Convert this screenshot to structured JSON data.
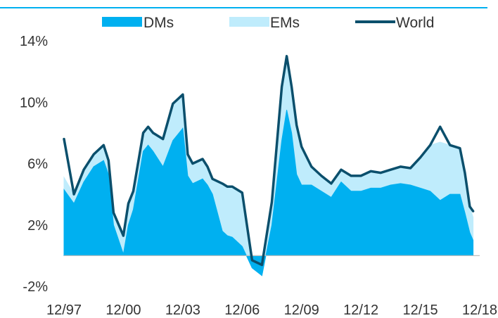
{
  "chart_data": {
    "type": "area",
    "title": "",
    "xlabel": "",
    "ylabel": "",
    "ylim": [
      -2,
      14
    ],
    "y_ticks": [
      "14%",
      "10%",
      "6%",
      "2%",
      "-2%"
    ],
    "y_tick_values": [
      14,
      10,
      6,
      2,
      -2
    ],
    "x_ticks": [
      "12/97",
      "12/00",
      "12/03",
      "12/06",
      "12/09",
      "12/12",
      "12/15",
      "12/18"
    ],
    "x_tick_values": [
      "1997-12",
      "2000-12",
      "2003-12",
      "2006-12",
      "2009-12",
      "2012-12",
      "2015-12",
      "2018-12"
    ],
    "x_range": [
      "1997-12",
      "2018-08"
    ],
    "grid": false,
    "legend_position": "top",
    "colors": {
      "DMs": "#00b0f0",
      "EMs": "#bfecfc",
      "World": "#0b4f6c",
      "axis": "#bfbfbf",
      "header_rule": "#00b0f0"
    },
    "x": [
      "1997-12",
      "1998-06",
      "1998-12",
      "1999-06",
      "1999-12",
      "2000-03",
      "2000-06",
      "2000-12",
      "2001-03",
      "2001-06",
      "2001-12",
      "2002-03",
      "2002-06",
      "2002-12",
      "2003-06",
      "2003-12",
      "2004-03",
      "2004-06",
      "2004-12",
      "2005-03",
      "2005-06",
      "2005-12",
      "2006-03",
      "2006-06",
      "2006-12",
      "2007-06",
      "2007-12",
      "2008-06",
      "2008-12",
      "2009-03",
      "2009-06",
      "2009-09",
      "2009-12",
      "2010-06",
      "2010-12",
      "2011-06",
      "2011-12",
      "2012-06",
      "2012-12",
      "2013-06",
      "2013-12",
      "2014-06",
      "2014-12",
      "2015-06",
      "2015-12",
      "2016-06",
      "2016-12",
      "2017-06",
      "2017-12",
      "2018-03",
      "2018-06",
      "2018-08"
    ],
    "series": [
      {
        "name": "DMs",
        "type": "area",
        "values": [
          4.3,
          3.4,
          4.8,
          5.8,
          6.2,
          5.3,
          2.0,
          0.1,
          2.0,
          3.0,
          6.8,
          7.2,
          6.8,
          5.8,
          7.5,
          8.3,
          5.2,
          4.7,
          5.0,
          4.6,
          4.0,
          1.6,
          1.3,
          1.2,
          0.6,
          -0.8,
          -1.3,
          2.0,
          7.5,
          9.5,
          8.0,
          5.3,
          4.6,
          4.6,
          4.2,
          3.8,
          4.8,
          4.2,
          4.2,
          4.4,
          4.4,
          4.6,
          4.7,
          4.6,
          4.4,
          4.2,
          3.6,
          4.0,
          4.0,
          2.8,
          1.5,
          1.0
        ]
      },
      {
        "name": "EMs",
        "type": "area",
        "values": [
          0.8,
          0.6,
          0.8,
          0.8,
          1.0,
          0.9,
          0.8,
          1.2,
          1.4,
          1.2,
          1.2,
          1.2,
          1.2,
          1.8,
          2.4,
          2.2,
          1.4,
          1.3,
          1.3,
          1.2,
          1.0,
          3.1,
          3.2,
          3.3,
          3.5,
          0.5,
          0.3,
          1.5,
          3.5,
          3.5,
          3.0,
          3.2,
          2.5,
          1.2,
          1.0,
          0.9,
          0.8,
          1.0,
          1.0,
          1.1,
          1.0,
          1.0,
          1.1,
          1.1,
          2.0,
          3.0,
          3.8,
          3.2,
          3.0,
          2.6,
          1.7,
          1.5
        ]
      },
      {
        "name": "World",
        "type": "line",
        "values": [
          7.6,
          4.0,
          5.6,
          6.6,
          7.2,
          6.2,
          2.8,
          1.3,
          3.4,
          4.2,
          8.0,
          8.4,
          8.0,
          7.6,
          9.9,
          10.5,
          6.6,
          6.0,
          6.3,
          5.8,
          5.0,
          4.7,
          4.5,
          4.5,
          4.1,
          -0.3,
          -0.6,
          3.5,
          11.0,
          13.0,
          11.0,
          8.5,
          7.1,
          5.8,
          5.2,
          4.7,
          5.6,
          5.2,
          5.2,
          5.5,
          5.4,
          5.6,
          5.8,
          5.7,
          6.4,
          7.2,
          8.4,
          7.2,
          7.0,
          5.4,
          3.2,
          2.9
        ]
      }
    ]
  }
}
